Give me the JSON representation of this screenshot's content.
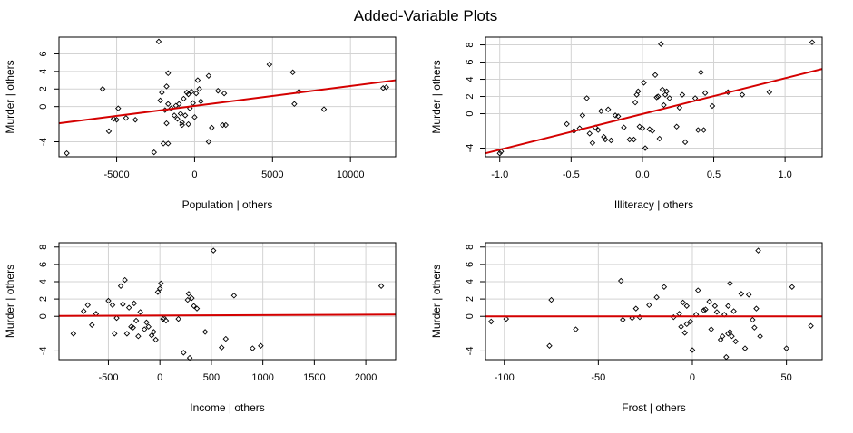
{
  "title": "Added-Variable Plots",
  "chart_data": [
    {
      "type": "scatter",
      "xlabel": "Population | others",
      "ylabel": "Murder  | others",
      "xlim": [
        -8700,
        12900
      ],
      "ylim": [
        -5.7,
        7.9
      ],
      "xticks": [
        -5000,
        0,
        5000,
        10000
      ],
      "xtick_labels": [
        "-5000",
        "0",
        "5000",
        "10000"
      ],
      "yticks": [
        -4,
        0,
        2,
        4,
        6
      ],
      "ytick_labels": [
        "-4",
        "0",
        "2",
        "4",
        "6"
      ],
      "grid": true,
      "line": {
        "x": [
          -8700,
          12900
        ],
        "y": [
          -1.9,
          3.0
        ]
      },
      "points": [
        [
          -8200,
          -5.3
        ],
        [
          -5900,
          2.0
        ],
        [
          -5500,
          -2.8
        ],
        [
          -5200,
          -1.4
        ],
        [
          -5000,
          -1.5
        ],
        [
          -4900,
          -0.2
        ],
        [
          -4400,
          -1.3
        ],
        [
          -3800,
          -1.5
        ],
        [
          -2600,
          -5.2
        ],
        [
          -2300,
          7.4
        ],
        [
          -2200,
          0.7
        ],
        [
          -2100,
          1.6
        ],
        [
          -2000,
          -4.2
        ],
        [
          -1900,
          -0.4
        ],
        [
          -1800,
          2.3
        ],
        [
          -1800,
          -1.9
        ],
        [
          -1700,
          3.8
        ],
        [
          -1700,
          -4.2
        ],
        [
          -1700,
          0.3
        ],
        [
          -1500,
          -0.2
        ],
        [
          -1300,
          -1.0
        ],
        [
          -1200,
          0.1
        ],
        [
          -1100,
          -1.4
        ],
        [
          -1000,
          0.3
        ],
        [
          -900,
          -0.8
        ],
        [
          -800,
          -2.1
        ],
        [
          -800,
          -1.8
        ],
        [
          -700,
          0.9
        ],
        [
          -600,
          -1.0
        ],
        [
          -500,
          1.6
        ],
        [
          -400,
          1.4
        ],
        [
          -400,
          -2.0
        ],
        [
          -300,
          -0.2
        ],
        [
          -200,
          1.7
        ],
        [
          -100,
          0.4
        ],
        [
          0,
          -1.2
        ],
        [
          100,
          1.5
        ],
        [
          200,
          3.0
        ],
        [
          300,
          2.0
        ],
        [
          400,
          0.6
        ],
        [
          900,
          3.5
        ],
        [
          900,
          -4.0
        ],
        [
          1100,
          -2.4
        ],
        [
          1500,
          1.8
        ],
        [
          1800,
          -2.1
        ],
        [
          1900,
          1.5
        ],
        [
          2000,
          -2.1
        ],
        [
          4800,
          4.8
        ],
        [
          6300,
          3.9
        ],
        [
          6400,
          0.3
        ],
        [
          6700,
          1.7
        ],
        [
          8300,
          -0.3
        ],
        [
          12100,
          2.1
        ],
        [
          12300,
          2.2
        ]
      ]
    },
    {
      "type": "scatter",
      "xlabel": "Illiteracy | others",
      "ylabel": "Murder  | others",
      "xlim": [
        -1.1,
        1.26
      ],
      "ylim": [
        -5.0,
        8.9
      ],
      "xticks": [
        -1.0,
        -0.5,
        0.0,
        0.5,
        1.0
      ],
      "xtick_labels": [
        "-1.0",
        "-0.5",
        "0.0",
        "0.5",
        "1.0"
      ],
      "yticks": [
        -4,
        0,
        2,
        4,
        6,
        8
      ],
      "ytick_labels": [
        "-4",
        "0",
        "2",
        "4",
        "6",
        "8"
      ],
      "grid": true,
      "line": {
        "x": [
          -1.1,
          1.26
        ],
        "y": [
          -4.6,
          5.2
        ]
      },
      "points": [
        [
          -1.0,
          -4.6
        ],
        [
          -0.99,
          -4.4
        ],
        [
          -0.53,
          -1.2
        ],
        [
          -0.48,
          -2.0
        ],
        [
          -0.44,
          -1.7
        ],
        [
          -0.42,
          -0.2
        ],
        [
          -0.39,
          1.8
        ],
        [
          -0.37,
          -2.3
        ],
        [
          -0.35,
          -3.4
        ],
        [
          -0.33,
          -1.6
        ],
        [
          -0.31,
          -1.9
        ],
        [
          -0.29,
          0.3
        ],
        [
          -0.27,
          -2.7
        ],
        [
          -0.26,
          -3.0
        ],
        [
          -0.24,
          0.5
        ],
        [
          -0.22,
          -3.1
        ],
        [
          -0.19,
          -0.2
        ],
        [
          -0.17,
          -0.3
        ],
        [
          -0.13,
          -1.6
        ],
        [
          -0.09,
          -3.0
        ],
        [
          -0.06,
          -3.0
        ],
        [
          -0.05,
          1.3
        ],
        [
          -0.04,
          2.2
        ],
        [
          -0.03,
          2.6
        ],
        [
          -0.02,
          -1.5
        ],
        [
          0.0,
          -1.7
        ],
        [
          0.01,
          3.6
        ],
        [
          0.02,
          -4.0
        ],
        [
          0.05,
          -1.8
        ],
        [
          0.07,
          -2.0
        ],
        [
          0.09,
          4.5
        ],
        [
          0.1,
          1.9
        ],
        [
          0.11,
          2.0
        ],
        [
          0.12,
          -2.9
        ],
        [
          0.13,
          8.1
        ],
        [
          0.14,
          2.8
        ],
        [
          0.15,
          1.0
        ],
        [
          0.16,
          2.2
        ],
        [
          0.17,
          2.6
        ],
        [
          0.19,
          1.8
        ],
        [
          0.24,
          -1.5
        ],
        [
          0.26,
          0.7
        ],
        [
          0.28,
          2.2
        ],
        [
          0.3,
          -3.3
        ],
        [
          0.37,
          1.8
        ],
        [
          0.39,
          -1.9
        ],
        [
          0.41,
          4.8
        ],
        [
          0.43,
          -1.9
        ],
        [
          0.44,
          2.4
        ],
        [
          0.49,
          0.9
        ],
        [
          0.6,
          2.5
        ],
        [
          0.7,
          2.2
        ],
        [
          0.89,
          2.5
        ],
        [
          1.19,
          8.3
        ]
      ]
    },
    {
      "type": "scatter",
      "xlabel": "Income | others",
      "ylabel": "Murder  | others",
      "xlim": [
        -980,
        2290
      ],
      "ylim": [
        -5.0,
        8.5
      ],
      "xticks": [
        -500,
        0,
        500,
        1000,
        1500,
        2000
      ],
      "xtick_labels": [
        "-500",
        "0",
        "500",
        "1000",
        "1500",
        "2000"
      ],
      "yticks": [
        -4,
        0,
        2,
        4,
        6,
        8
      ],
      "ytick_labels": [
        "-4",
        "0",
        "2",
        "4",
        "6",
        "8"
      ],
      "grid": true,
      "line": {
        "x": [
          -980,
          2290
        ],
        "y": [
          0.05,
          0.2
        ]
      },
      "points": [
        [
          -840,
          -2.0
        ],
        [
          -740,
          0.6
        ],
        [
          -700,
          1.3
        ],
        [
          -660,
          -1.0
        ],
        [
          -620,
          0.3
        ],
        [
          -500,
          1.8
        ],
        [
          -460,
          1.3
        ],
        [
          -440,
          -2.0
        ],
        [
          -420,
          -0.2
        ],
        [
          -380,
          3.5
        ],
        [
          -360,
          1.4
        ],
        [
          -340,
          4.2
        ],
        [
          -320,
          -2.0
        ],
        [
          -300,
          1.0
        ],
        [
          -280,
          -1.2
        ],
        [
          -260,
          -1.3
        ],
        [
          -250,
          1.5
        ],
        [
          -230,
          -0.5
        ],
        [
          -210,
          -2.3
        ],
        [
          -190,
          0.5
        ],
        [
          -150,
          -1.5
        ],
        [
          -130,
          -0.7
        ],
        [
          -110,
          -1.2
        ],
        [
          -80,
          -2.2
        ],
        [
          -60,
          -1.8
        ],
        [
          -40,
          -2.7
        ],
        [
          -20,
          2.8
        ],
        [
          0,
          3.2
        ],
        [
          10,
          3.8
        ],
        [
          30,
          -0.3
        ],
        [
          40,
          -0.2
        ],
        [
          60,
          -0.5
        ],
        [
          180,
          -0.3
        ],
        [
          230,
          -4.2
        ],
        [
          270,
          1.9
        ],
        [
          280,
          2.6
        ],
        [
          290,
          -4.8
        ],
        [
          310,
          2.1
        ],
        [
          330,
          1.2
        ],
        [
          360,
          0.9
        ],
        [
          440,
          -1.8
        ],
        [
          520,
          7.6
        ],
        [
          600,
          -3.6
        ],
        [
          640,
          -2.6
        ],
        [
          720,
          2.4
        ],
        [
          900,
          -3.7
        ],
        [
          980,
          -3.4
        ],
        [
          2150,
          3.5
        ]
      ]
    },
    {
      "type": "scatter",
      "xlabel": "Frost | others",
      "ylabel": "Murder  | others",
      "xlim": [
        -110,
        69
      ],
      "ylim": [
        -5.0,
        8.5
      ],
      "xticks": [
        -100,
        -50,
        0,
        50
      ],
      "xtick_labels": [
        "-100",
        "-50",
        "0",
        "50"
      ],
      "yticks": [
        -4,
        0,
        2,
        4,
        6,
        8
      ],
      "ytick_labels": [
        "-4",
        "0",
        "2",
        "4",
        "6",
        "8"
      ],
      "grid": true,
      "line": {
        "x": [
          -110,
          69
        ],
        "y": [
          0.0,
          0.0
        ]
      },
      "points": [
        [
          -107,
          -0.6
        ],
        [
          -99,
          -0.3
        ],
        [
          -76,
          -3.4
        ],
        [
          -75,
          1.9
        ],
        [
          -62,
          -1.5
        ],
        [
          -38,
          4.1
        ],
        [
          -37,
          -0.4
        ],
        [
          -32,
          -0.2
        ],
        [
          -30,
          0.9
        ],
        [
          -28,
          -0.1
        ],
        [
          -23,
          1.3
        ],
        [
          -19,
          2.2
        ],
        [
          -15,
          3.4
        ],
        [
          -10,
          -0.1
        ],
        [
          -7,
          0.3
        ],
        [
          -6,
          -1.2
        ],
        [
          -5,
          1.6
        ],
        [
          -4,
          -1.9
        ],
        [
          -3,
          1.2
        ],
        [
          -3,
          -0.9
        ],
        [
          -1,
          -0.6
        ],
        [
          0,
          -3.9
        ],
        [
          2,
          0.2
        ],
        [
          3,
          3.0
        ],
        [
          6,
          0.7
        ],
        [
          7,
          0.8
        ],
        [
          9,
          1.7
        ],
        [
          10,
          -1.5
        ],
        [
          12,
          1.2
        ],
        [
          13,
          0.5
        ],
        [
          15,
          -2.7
        ],
        [
          16,
          -2.3
        ],
        [
          17,
          0.2
        ],
        [
          18,
          -4.7
        ],
        [
          19,
          -2.0
        ],
        [
          19,
          1.2
        ],
        [
          20,
          3.8
        ],
        [
          20,
          -1.8
        ],
        [
          21,
          -2.3
        ],
        [
          22,
          0.6
        ],
        [
          23,
          -2.9
        ],
        [
          26,
          2.6
        ],
        [
          28,
          -3.7
        ],
        [
          30,
          2.5
        ],
        [
          32,
          -0.4
        ],
        [
          33,
          -1.3
        ],
        [
          34,
          0.9
        ],
        [
          35,
          7.6
        ],
        [
          36,
          -2.3
        ],
        [
          50,
          -3.7
        ],
        [
          53,
          3.4
        ],
        [
          63,
          -1.1
        ]
      ]
    }
  ]
}
